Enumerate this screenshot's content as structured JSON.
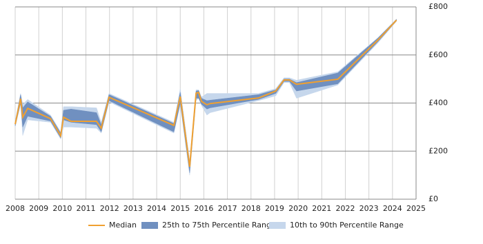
{
  "chart_data": {
    "type": "percentile-band",
    "x": [
      2008.0,
      2008.23,
      2008.32,
      2008.53,
      2009.5,
      2009.93,
      2010.05,
      2010.37,
      2011.45,
      2011.65,
      2011.98,
      2014.73,
      2015.0,
      2015.4,
      2015.67,
      2015.78,
      2015.9,
      2016.13,
      2016.27,
      2018.32,
      2019.05,
      2019.4,
      2019.63,
      2019.93,
      2021.68,
      2023.38,
      2024.17
    ],
    "series": [
      {
        "name": "10th to 90th Percentile Range",
        "color": "#c6d7ec",
        "low": [
          300,
          395,
          265,
          330,
          320,
          250,
          300,
          300,
          295,
          275,
          405,
          275,
          395,
          100,
          410,
          420,
          390,
          350,
          360,
          410,
          430,
          485,
          485,
          420,
          475,
          650,
          740
        ],
        "high": [
          325,
          440,
          395,
          415,
          350,
          280,
          385,
          385,
          380,
          320,
          440,
          320,
          460,
          160,
          455,
          455,
          425,
          440,
          440,
          440,
          460,
          505,
          505,
          495,
          530,
          672,
          750
        ]
      },
      {
        "name": "25th to 75th Percentile Range",
        "color": "#7090c0",
        "low": [
          305,
          400,
          300,
          345,
          325,
          255,
          330,
          320,
          310,
          280,
          410,
          280,
          400,
          110,
          420,
          420,
          395,
          375,
          380,
          415,
          440,
          490,
          490,
          450,
          480,
          655,
          742
        ],
        "high": [
          320,
          435,
          380,
          405,
          345,
          275,
          370,
          375,
          360,
          310,
          435,
          315,
          445,
          150,
          450,
          452,
          420,
          410,
          412,
          435,
          455,
          500,
          500,
          485,
          525,
          670,
          748
        ]
      },
      {
        "name": "Median",
        "color": "#f0a030",
        "values": [
          312,
          418,
          341,
          378,
          335,
          264,
          341,
          324,
          324,
          295,
          424,
          307,
          427,
          135,
          441,
          444,
          407,
          393,
          398,
          421,
          450,
          496,
          496,
          478,
          499,
          662,
          745
        ]
      }
    ],
    "xlim": [
      2008,
      2025
    ],
    "xticks": [
      2008,
      2009,
      2010,
      2011,
      2012,
      2013,
      2014,
      2015,
      2016,
      2017,
      2018,
      2019,
      2020,
      2021,
      2022,
      2023,
      2024,
      2025
    ],
    "ylim": [
      0,
      800
    ],
    "yticks": [
      {
        "value": 0,
        "label": "£0"
      },
      {
        "value": 200,
        "label": "£200"
      },
      {
        "value": 400,
        "label": "£400"
      },
      {
        "value": 600,
        "label": "£600"
      },
      {
        "value": 800,
        "label": "£800"
      }
    ],
    "grid": true
  }
}
